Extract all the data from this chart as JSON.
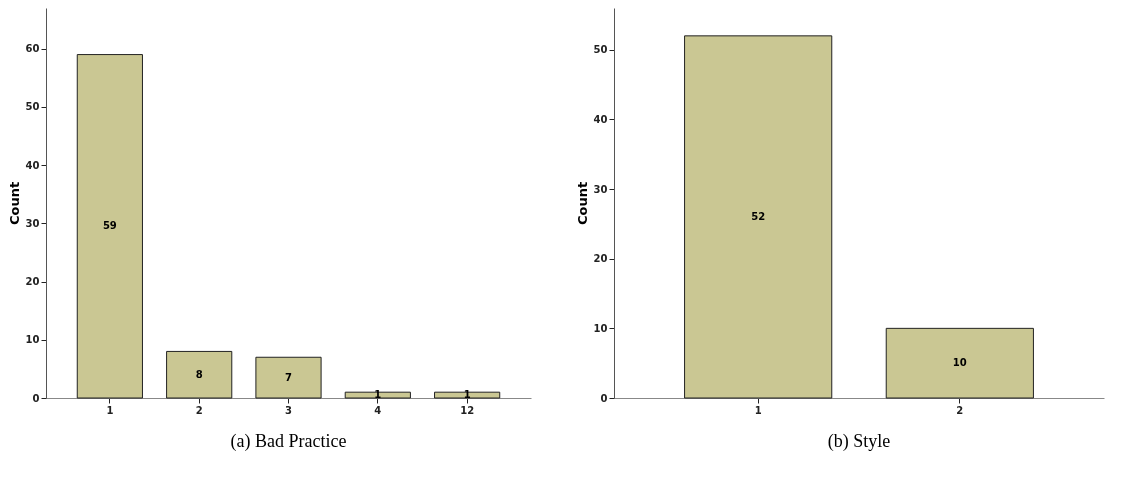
{
  "chart_data": [
    {
      "type": "bar",
      "title": "(a) Bad Practice",
      "ylabel": "Count",
      "categories": [
        "1",
        "2",
        "3",
        "4",
        "12"
      ],
      "values": [
        59,
        8,
        7,
        1,
        1
      ],
      "color": "#cac793",
      "ylim": [
        0,
        67
      ],
      "yticks": [
        0,
        10,
        20,
        30,
        40,
        50,
        60
      ],
      "data_labels": true
    },
    {
      "type": "bar",
      "title": "(b) Style",
      "ylabel": "Count",
      "categories": [
        "1",
        "2"
      ],
      "values": [
        52,
        10
      ],
      "color": "#cac793",
      "ylim": [
        0,
        56
      ],
      "yticks": [
        0,
        10,
        20,
        30,
        40,
        50
      ],
      "data_labels": true
    }
  ]
}
